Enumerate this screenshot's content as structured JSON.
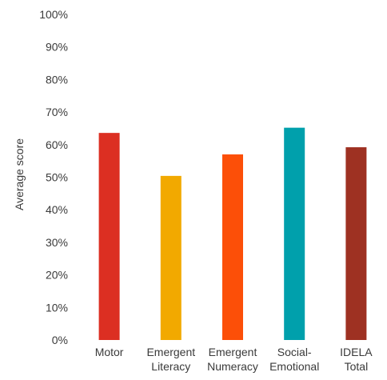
{
  "chart_data": {
    "type": "bar",
    "categories": [
      [
        "Motor"
      ],
      [
        "Emergent",
        "Literacy"
      ],
      [
        "Emergent",
        "Numeracy"
      ],
      [
        "Social-",
        "Emotional"
      ],
      [
        "IDELA",
        "Total"
      ]
    ],
    "values": [
      63.6,
      50.4,
      57.0,
      65.2,
      59.2
    ],
    "colors": [
      "#dc2f22",
      "#f2a900",
      "#fc4f08",
      "#00a0ac",
      "#9e3122"
    ],
    "ylabel": "Average score",
    "ylim": [
      0,
      100
    ],
    "yticks": [
      "0%",
      "10%",
      "20%",
      "30%",
      "40%",
      "50%",
      "60%",
      "70%",
      "80%",
      "90%",
      "100%"
    ],
    "grid": false,
    "legend": "none"
  }
}
